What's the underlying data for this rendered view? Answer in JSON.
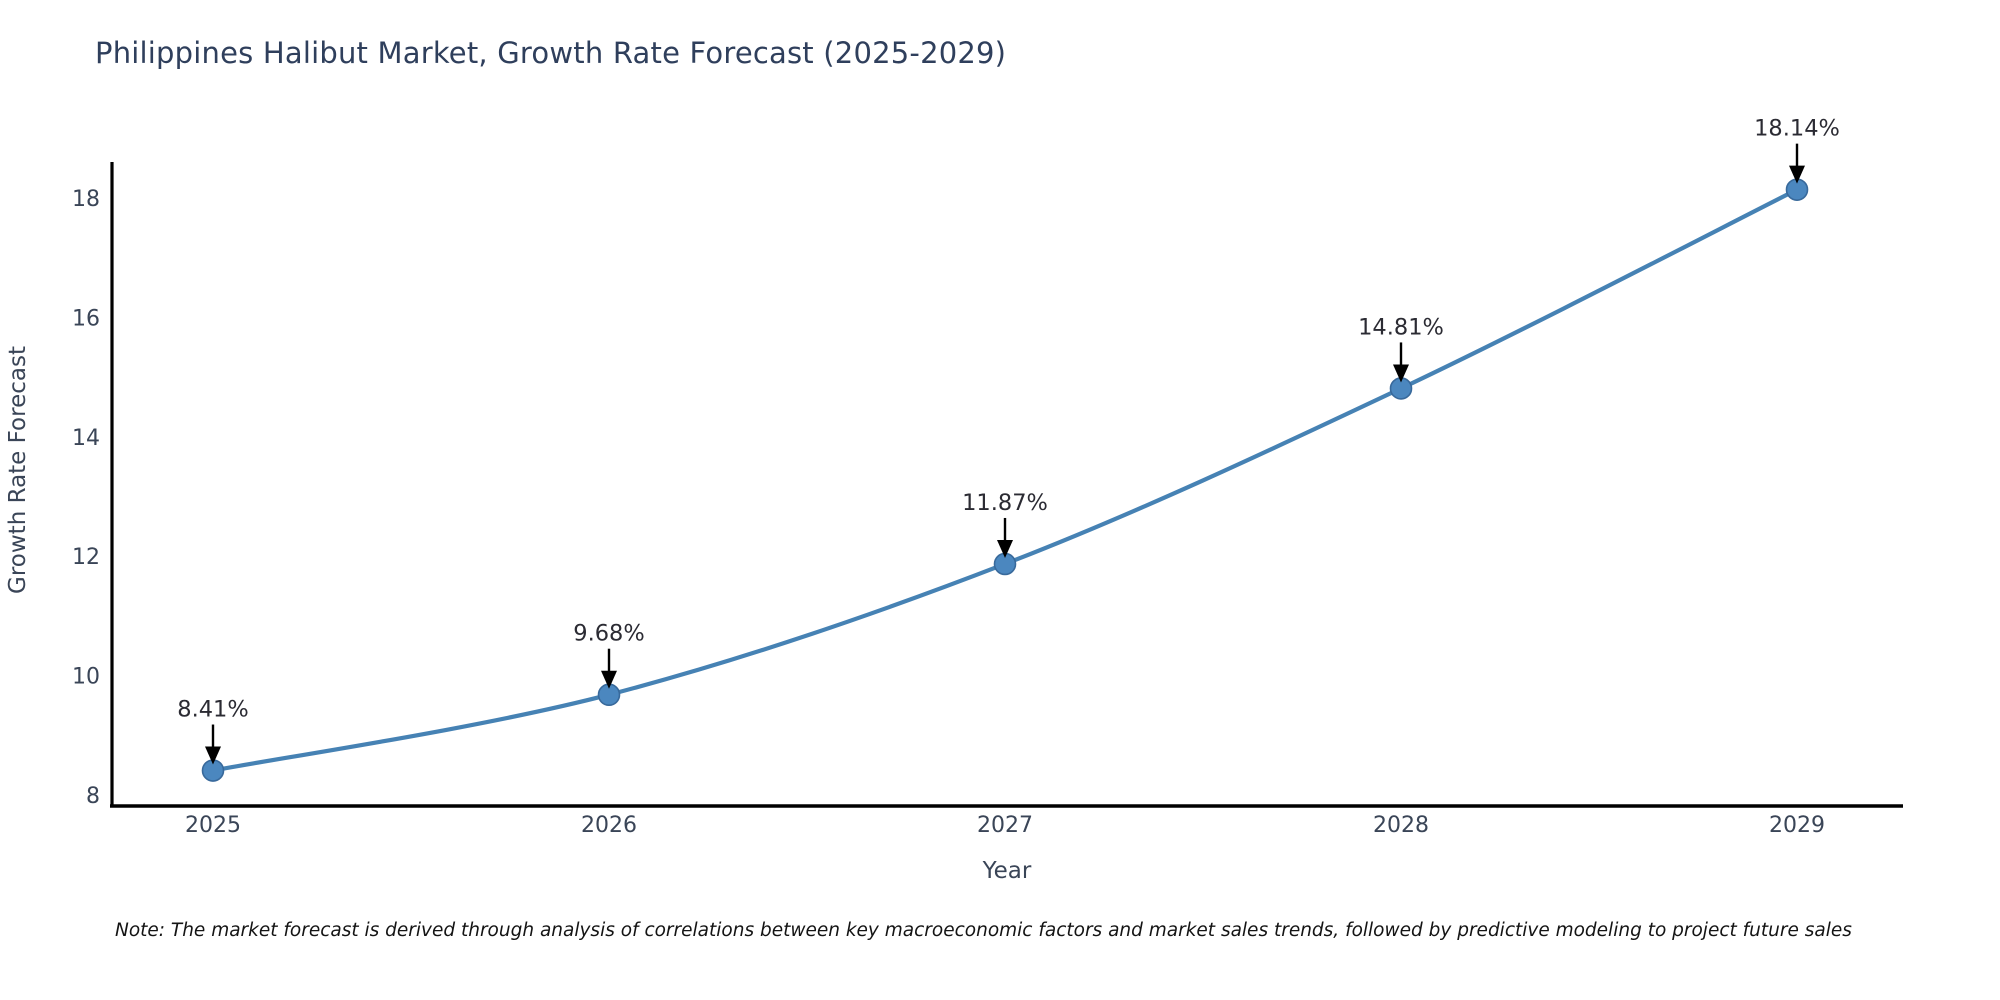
{
  "title": "Philippines Halibut Market, Growth Rate Forecast (2025-2029)",
  "note": "Note: The market forecast is derived through analysis of correlations between key macroeconomic factors and market sales trends, followed by predictive modeling to project future sales",
  "chart_data": {
    "type": "line",
    "title": "Philippines Halibut Market, Growth Rate Forecast (2025-2029)",
    "xlabel": "Year",
    "ylabel": "Growth Rate Forecast",
    "x": [
      2025,
      2026,
      2027,
      2028,
      2029
    ],
    "xticklabels": [
      "2025",
      "2026",
      "2027",
      "2028",
      "2029"
    ],
    "values": [
      8.41,
      9.68,
      11.87,
      14.81,
      18.14
    ],
    "point_labels": [
      "8.41%",
      "9.68%",
      "11.87%",
      "14.81%",
      "18.14%"
    ],
    "yticks": [
      8,
      10,
      12,
      14,
      16,
      18
    ],
    "ylim": [
      7.82,
      18.8
    ],
    "grid": false,
    "legend": "none",
    "smooth_line": true,
    "colors": {
      "line": "#4682B4",
      "marker_fill": "#4b87bf",
      "marker_edge": "#38699b",
      "annotation_text": "#2b2b33",
      "annotation_arrow": "#000000",
      "axis_spine": "#000000",
      "tick_label": "#3a4557"
    }
  }
}
